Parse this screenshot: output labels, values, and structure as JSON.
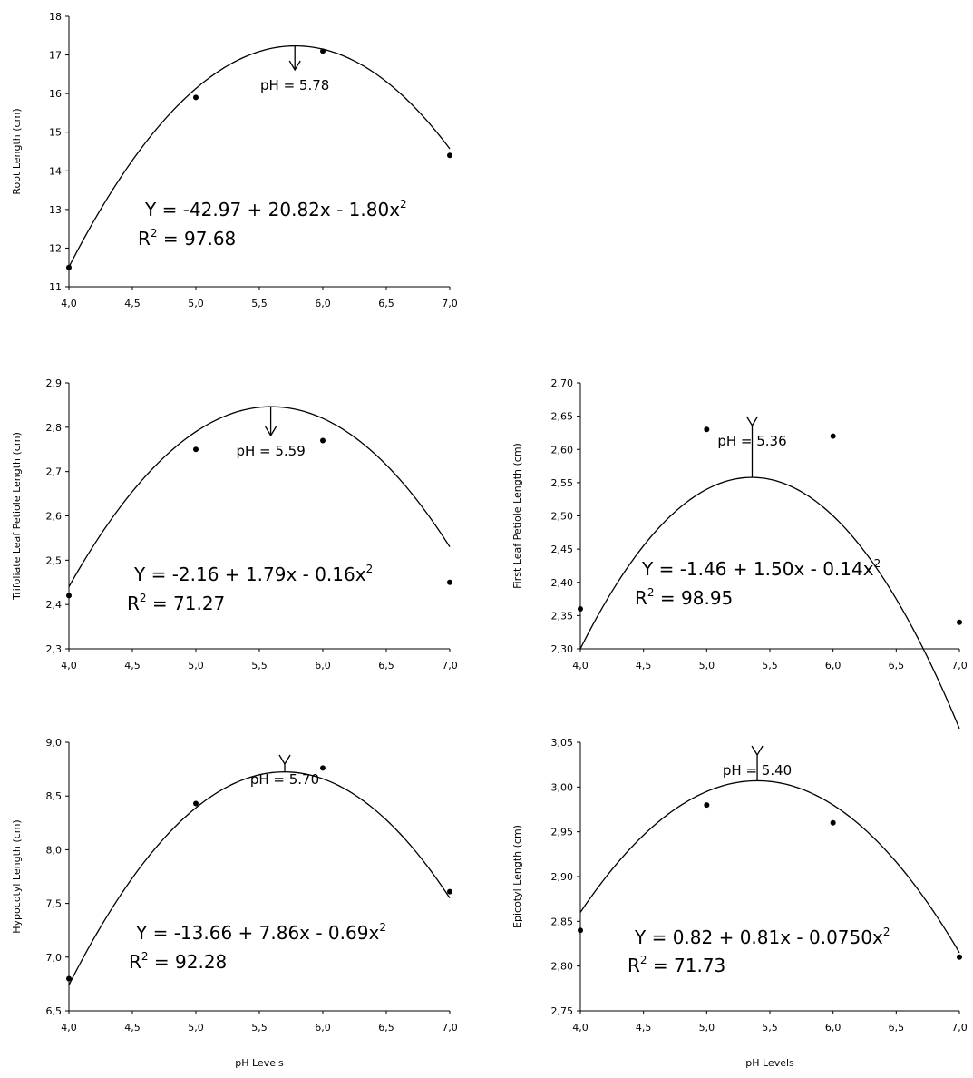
{
  "chart_data": [
    {
      "type": "scatter",
      "ylabel": "Root Length (cm)",
      "xlabel": "",
      "x_ticks": [
        "4,0",
        "4,5",
        "5,0",
        "5,5",
        "6,0",
        "6,5",
        "7,0"
      ],
      "y_ticks": [
        "11",
        "12",
        "13",
        "14",
        "15",
        "16",
        "17",
        "18"
      ],
      "xlim": [
        4.0,
        7.0
      ],
      "ylim": [
        11,
        18
      ],
      "points": [
        {
          "x": 4.0,
          "y": 11.5
        },
        {
          "x": 5.0,
          "y": 15.9
        },
        {
          "x": 6.0,
          "y": 17.1
        },
        {
          "x": 7.0,
          "y": 14.4
        }
      ],
      "fit": {
        "a": -42.97,
        "b": 20.82,
        "c": -1.8
      },
      "equation": "Y = -42.97 + 20.82x - 1.80x",
      "equation_sup": "2",
      "r2_prefix": "R",
      "r2_sup": "2",
      "r2_value": " = 97.68",
      "annotation": "pH = 5.78",
      "annotation_x": 5.78
    },
    {
      "type": "scatter",
      "ylabel": "Trifoliate Leaf Petiole Length (cm)",
      "xlabel": "",
      "x_ticks": [
        "4,0",
        "4,5",
        "5,0",
        "5,5",
        "6,0",
        "6,5",
        "7,0"
      ],
      "y_ticks": [
        "2,3",
        "2,4",
        "2,5",
        "2,6",
        "2,7",
        "2,8",
        "2,9"
      ],
      "xlim": [
        4.0,
        7.0
      ],
      "ylim": [
        2.3,
        2.9
      ],
      "points": [
        {
          "x": 4.0,
          "y": 2.42
        },
        {
          "x": 5.0,
          "y": 2.75
        },
        {
          "x": 6.0,
          "y": 2.77
        },
        {
          "x": 7.0,
          "y": 2.45
        }
      ],
      "fit": {
        "a": -2.16,
        "b": 1.79,
        "c": -0.16
      },
      "equation": "Y = -2.16 + 1.79x - 0.16x",
      "equation_sup": "2",
      "r2_prefix": "R",
      "r2_sup": "2",
      "r2_value": " = 71.27",
      "annotation": "pH = 5.59",
      "annotation_x": 5.59
    },
    {
      "type": "scatter",
      "ylabel": "First Leaf Petiole Length (cm)",
      "xlabel": "",
      "x_ticks": [
        "4,0",
        "4,5",
        "5,0",
        "5,5",
        "6,0",
        "6,5",
        "7,0"
      ],
      "y_ticks": [
        "2,30",
        "2,35",
        "2,40",
        "2,45",
        "2,50",
        "2,55",
        "2,60",
        "2,65",
        "2,70"
      ],
      "xlim": [
        4.0,
        7.0
      ],
      "ylim": [
        2.3,
        2.7
      ],
      "points": [
        {
          "x": 4.0,
          "y": 2.36
        },
        {
          "x": 5.0,
          "y": 2.63
        },
        {
          "x": 6.0,
          "y": 2.62
        },
        {
          "x": 7.0,
          "y": 2.34
        }
      ],
      "fit": {
        "a": -1.46,
        "b": 1.5,
        "c": -0.14
      },
      "equation": "Y = -1.46 + 1.50x - 0.14x",
      "equation_sup": "2",
      "r2_prefix": "R",
      "r2_sup": "2",
      "r2_value": " = 98.95",
      "annotation": "pH = 5.36",
      "annotation_x": 5.36
    },
    {
      "type": "scatter",
      "ylabel": "Hypocotyl Length (cm)",
      "xlabel": "pH Levels",
      "x_ticks": [
        "4,0",
        "4,5",
        "5,0",
        "5,5",
        "6,0",
        "6,5",
        "7,0"
      ],
      "y_ticks": [
        "6,5",
        "7,0",
        "7,5",
        "8,0",
        "8,5",
        "9,0"
      ],
      "xlim": [
        4.0,
        7.0
      ],
      "ylim": [
        6.5,
        9.0
      ],
      "points": [
        {
          "x": 4.0,
          "y": 6.8
        },
        {
          "x": 5.0,
          "y": 8.43
        },
        {
          "x": 6.0,
          "y": 8.76
        },
        {
          "x": 7.0,
          "y": 7.61
        }
      ],
      "fit": {
        "a": -13.66,
        "b": 7.86,
        "c": -0.69
      },
      "equation": "Y = -13.66 + 7.86x - 0.69x",
      "equation_sup": "2",
      "r2_prefix": "R",
      "r2_sup": "2",
      "r2_value": " = 92.28",
      "annotation": "pH = 5.70",
      "annotation_x": 5.7
    },
    {
      "type": "scatter",
      "ylabel": "Epicotyl Length (cm)",
      "xlabel": "pH Levels",
      "x_ticks": [
        "4,0",
        "4,5",
        "5,0",
        "5,5",
        "6,0",
        "6,5",
        "7,0"
      ],
      "y_ticks": [
        "2,75",
        "2,80",
        "2,85",
        "2,90",
        "2,95",
        "3,00",
        "3,05"
      ],
      "xlim": [
        4.0,
        7.0
      ],
      "ylim": [
        2.75,
        3.05
      ],
      "points": [
        {
          "x": 4.0,
          "y": 2.84
        },
        {
          "x": 5.0,
          "y": 2.98
        },
        {
          "x": 6.0,
          "y": 2.96
        },
        {
          "x": 7.0,
          "y": 2.81
        }
      ],
      "fit": {
        "a": 0.82,
        "b": 0.81,
        "c": -0.075
      },
      "equation": "Y = 0.82 + 0.81x - 0.0750x",
      "equation_sup": "2",
      "r2_prefix": "R",
      "r2_sup": "2",
      "r2_value": " = 71.73",
      "annotation": "pH = 5.40",
      "annotation_x": 5.4
    }
  ]
}
